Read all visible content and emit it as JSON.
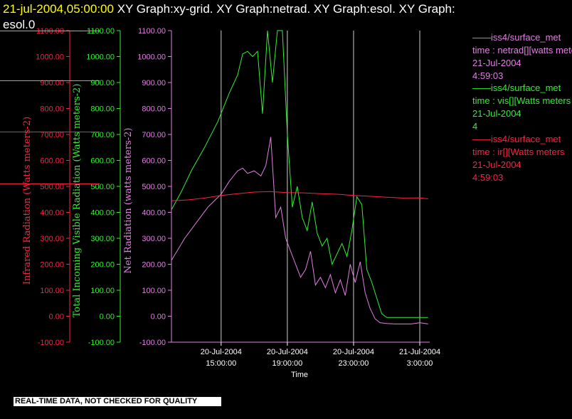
{
  "header": {
    "timestamp": "21-jul-2004,05:00:00",
    "title_rest": "XY Graph:xy-grid.  XY Graph:netrad.  XY Graph:esol.  XY Graph:",
    "title_wrap": "esol.0"
  },
  "legend": [
    {
      "line1": "iss4/surface_met",
      "line2": "time : netrad[][watts meters",
      "line3": "21-Jul-2004",
      "line4": "4:59:03",
      "color": "#e080e0"
    },
    {
      "line1": "iss4/surface_met",
      "line2": "time : vis[][Watts meters",
      "line3": "21-Jul-2004",
      "line4": "4",
      "color": "#33ee33"
    },
    {
      "line1": "iss4/surface_met",
      "line2": "time : ir[][Watts meters",
      "line3": "21-Jul-2004",
      "line4": "4:59:03",
      "color": "#ff2040"
    }
  ],
  "notice": "REAL-TIME DATA, NOT CHECKED FOR QUALITY",
  "chart_data": {
    "type": "line",
    "xlabel": "Time",
    "x_ticks": [
      {
        "date": "20-Jul-2004",
        "time": "15:00:00"
      },
      {
        "date": "20-Jul-2004",
        "time": "19:00:00"
      },
      {
        "date": "20-Jul-2004",
        "time": "23:00:00"
      },
      {
        "date": "21-Jul-2004",
        "time": "3:00:00"
      }
    ],
    "xlim_hours": [
      14.0,
      29.6
    ],
    "grid_x_hours": [
      17.0,
      21.0,
      25.0,
      29.0
    ],
    "axes": [
      {
        "label": "Infrared Radiation (Watts meters-2)",
        "color": "#ff2040",
        "ylim": [
          -100,
          1100
        ],
        "ticks": [
          "-100.00",
          "0.00",
          "100.00",
          "200.00",
          "300.00",
          "400.00",
          "500.00",
          "600.00",
          "700.00",
          "800.00",
          "900.00",
          "1000.00",
          "1100.00"
        ]
      },
      {
        "label": "Total Incoming Visible Radiation (Watts meters-2)",
        "color": "#33ee33",
        "ylim": [
          -100,
          1100
        ],
        "ticks": [
          "-100.00",
          "0.00",
          "100.00",
          "200.00",
          "300.00",
          "400.00",
          "500.00",
          "600.00",
          "700.00",
          "800.00",
          "900.00",
          "1000.00",
          "1100.00"
        ]
      },
      {
        "label": "Net Radiation (watts meters-2)",
        "color": "#e080e0",
        "ylim": [
          -100,
          1100
        ],
        "ticks": [
          "-100.00",
          "0.00",
          "100.00",
          "200.00",
          "300.00",
          "400.00",
          "500.00",
          "600.00",
          "700.00",
          "800.00",
          "900.00",
          "1000.00",
          "1100.00"
        ]
      }
    ],
    "series": [
      {
        "color": "#33ee33",
        "x_hours": [
          14.0,
          14.6,
          15.2,
          16.0,
          16.8,
          17.5,
          18.0,
          18.3,
          18.6,
          18.9,
          19.2,
          19.5,
          19.8,
          20.1,
          20.4,
          20.7,
          21.0,
          21.3,
          21.6,
          21.9,
          22.2,
          22.5,
          22.8,
          23.1,
          23.4,
          23.7,
          24.0,
          24.3,
          24.6,
          24.9,
          25.2,
          25.5,
          25.8,
          26.1,
          26.4,
          26.7,
          27.0,
          27.5,
          28.0,
          28.5,
          29.0,
          29.5
        ],
        "values": [
          410,
          480,
          560,
          650,
          750,
          860,
          930,
          1010,
          1020,
          1000,
          1020,
          780,
          1100,
          900,
          1100,
          1100,
          700,
          420,
          500,
          380,
          330,
          440,
          320,
          270,
          300,
          200,
          240,
          280,
          230,
          330,
          460,
          430,
          180,
          130,
          70,
          10,
          -5,
          -5,
          -5,
          -5,
          -5,
          -5
        ]
      },
      {
        "color": "#e080e0",
        "x_hours": [
          14.0,
          14.8,
          15.5,
          16.2,
          17.0,
          17.5,
          18.0,
          18.3,
          18.6,
          19.0,
          19.4,
          19.7,
          20.0,
          20.3,
          20.6,
          20.9,
          21.2,
          21.5,
          21.8,
          22.1,
          22.4,
          22.7,
          23.0,
          23.3,
          23.6,
          23.9,
          24.2,
          24.5,
          24.8,
          25.1,
          25.4,
          25.7,
          26.0,
          26.3,
          26.6,
          27.0,
          27.5,
          28.0,
          28.5,
          29.0,
          29.5
        ],
        "values": [
          215,
          300,
          360,
          420,
          470,
          520,
          560,
          570,
          550,
          560,
          540,
          580,
          690,
          380,
          420,
          300,
          250,
          200,
          150,
          180,
          250,
          120,
          150,
          110,
          160,
          90,
          140,
          80,
          200,
          130,
          210,
          90,
          30,
          -10,
          -25,
          -28,
          -30,
          -30,
          -30,
          -25,
          -30
        ]
      },
      {
        "color": "#ff2040",
        "x_hours": [
          14.0,
          15.0,
          16.0,
          17.0,
          18.0,
          19.0,
          20.0,
          21.0,
          22.0,
          23.0,
          24.0,
          25.0,
          26.0,
          27.0,
          28.0,
          29.0,
          29.5
        ],
        "values": [
          445,
          448,
          455,
          465,
          472,
          478,
          480,
          476,
          475,
          472,
          470,
          465,
          462,
          458,
          455,
          456,
          452
        ]
      }
    ]
  }
}
